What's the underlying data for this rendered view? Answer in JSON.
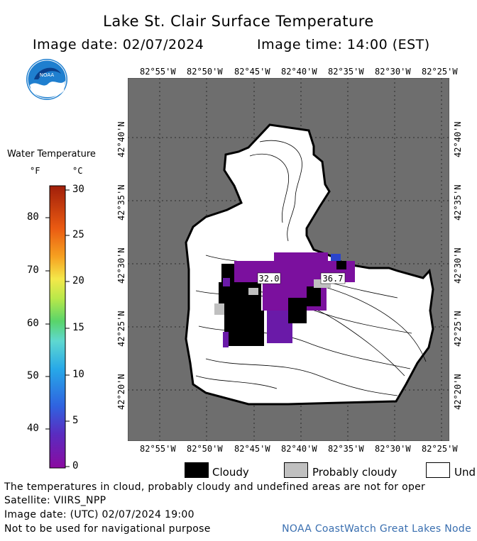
{
  "title": "Lake St. Clair Surface Temperature",
  "image_date_line": "Image date: 02/07/2024",
  "image_time_line": "Image time: 14:00 (EST)",
  "logo_text": "NOAA",
  "lon_labels": [
    "82°55'W",
    "82°50'W",
    "82°45'W",
    "82°40'W",
    "82°35'W",
    "82°30'W",
    "82°25'W"
  ],
  "lat_labels": [
    "42°40'N",
    "42°35'N",
    "42°30'N",
    "42°25'N",
    "42°20'N"
  ],
  "legend": {
    "title": "Water Temperature",
    "unit_f": "°F",
    "unit_c": "°C",
    "f_ticks": [
      "80",
      "70",
      "60",
      "50",
      "40"
    ],
    "c_ticks": [
      "30",
      "25",
      "20",
      "15",
      "10",
      "5",
      "0"
    ],
    "range_c": [
      0,
      30
    ]
  },
  "map_labels": [
    "32.0",
    "36.7"
  ],
  "key": {
    "cloudy": "Cloudy",
    "probably_cloudy": "Probably cloudy",
    "undefined": "Und"
  },
  "colors": {
    "land": "#6e6e6e",
    "cloud": "#000000",
    "probably_cloud": "#c0c0c0",
    "undefined": "#ffffff",
    "cold_water": "#7b109e",
    "credit_text": "#3a6fb0"
  },
  "footer": {
    "note": "The temperatures in cloud, probably cloudy and undefined areas are not for oper",
    "satellite": "Satellite: VIIRS_NPP",
    "utc_date": "Image date: (UTC) 02/07/2024  19:00",
    "nav_warning": "Not to be used for navigational purpose",
    "credit": "NOAA CoastWatch Great Lakes Node"
  }
}
